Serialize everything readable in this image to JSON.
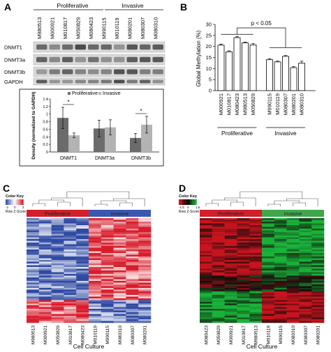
{
  "panel_letters": [
    "A",
    "B",
    "C",
    "D"
  ],
  "panel_a": {
    "group_labels": [
      "Proliferative",
      "Invasive"
    ],
    "sample_labels": [
      "M980513",
      "M000921",
      "M010817",
      "M050829",
      "M080423",
      "M990115",
      "M010119",
      "M080201",
      "M080307",
      "M080310"
    ],
    "blot_labels": [
      "DNMT1",
      "DNMT3a",
      "DNMT3b",
      "GAPDH"
    ],
    "inset_chart": {
      "type": "bar",
      "categories": [
        "DNMT1",
        "DNMT3a",
        "DNMT3b"
      ],
      "series": [
        {
          "name": "Proliferative",
          "values": [
            0.9,
            0.62,
            0.37
          ],
          "errors": [
            0.28,
            0.22,
            0.12
          ],
          "color": "#6b6b6b"
        },
        {
          "name": "Invasive",
          "values": [
            0.44,
            0.65,
            0.72
          ],
          "errors": [
            0.06,
            0.2,
            0.22
          ],
          "color": "#b3b3b3"
        }
      ],
      "ylabel": "Density (normalized to GAPDH)",
      "ylim": [
        0,
        1.4
      ],
      "yticks": [
        "0",
        "0.2",
        "0.4",
        "0.6",
        "0.8",
        "1",
        "1.2",
        "1.4"
      ],
      "significance": [
        "*",
        "",
        "*"
      ],
      "legend": "top"
    }
  },
  "chart_data": {
    "type": "bar",
    "categories": [
      "M000921",
      "M010817",
      "M080423",
      "M980513",
      "M050829",
      "M990115",
      "M010119",
      "M080307",
      "M080201",
      "M080310"
    ],
    "values": [
      20.6,
      17.6,
      24.0,
      21.6,
      20.7,
      14.0,
      13.0,
      15.5,
      10.4,
      12.4
    ],
    "errors": [
      0.5,
      0.4,
      0.5,
      0.4,
      0.6,
      0.5,
      0.4,
      0.4,
      0.5,
      0.9
    ],
    "groups": [
      {
        "name": "Proliferative",
        "count": 5
      },
      {
        "name": "Invasive",
        "count": 5
      }
    ],
    "ylabel": "Global Methylation (%)",
    "ylim": [
      0,
      30
    ],
    "yticks": [
      "0",
      "5",
      "10",
      "15",
      "20",
      "25",
      "30"
    ],
    "significance": "p < 0.05",
    "bar_color": "#ffffff"
  },
  "panel_c": {
    "color_key_title": "Color Key",
    "color_key_ticks": [
      "-2",
      "0",
      "2"
    ],
    "color_key_label": "Row Z-Score",
    "group_labels": [
      "Proliferative",
      "Invasive"
    ],
    "group_colors": [
      "#d11f2b",
      "#3b58b0"
    ],
    "low_color": "#2f4aa3",
    "high_color": "#d81c2b",
    "columns": [
      "M980513",
      "M000921",
      "M050829",
      "M010817",
      "M080423",
      "M010119",
      "M990115",
      "M080310",
      "M080307",
      "M080201"
    ],
    "xlabel": "Cell Culture"
  },
  "panel_d": {
    "color_key_title": "Color Key",
    "color_key_ticks": [
      "-1.5",
      "0",
      "1.5"
    ],
    "color_key_label": "Row Z-Score",
    "group_labels": [
      "Proliferative",
      "Invasive"
    ],
    "group_colors": [
      "#d11f2b",
      "#3ea84a"
    ],
    "low_color": "#19b23a",
    "high_color": "#c8141e",
    "columns": [
      "M080423",
      "M050829",
      "M000921",
      "M010817",
      "M980513",
      "M010119",
      "M990115",
      "M080310",
      "M080307",
      "M080201"
    ],
    "xlabel": "Cell Culture"
  }
}
